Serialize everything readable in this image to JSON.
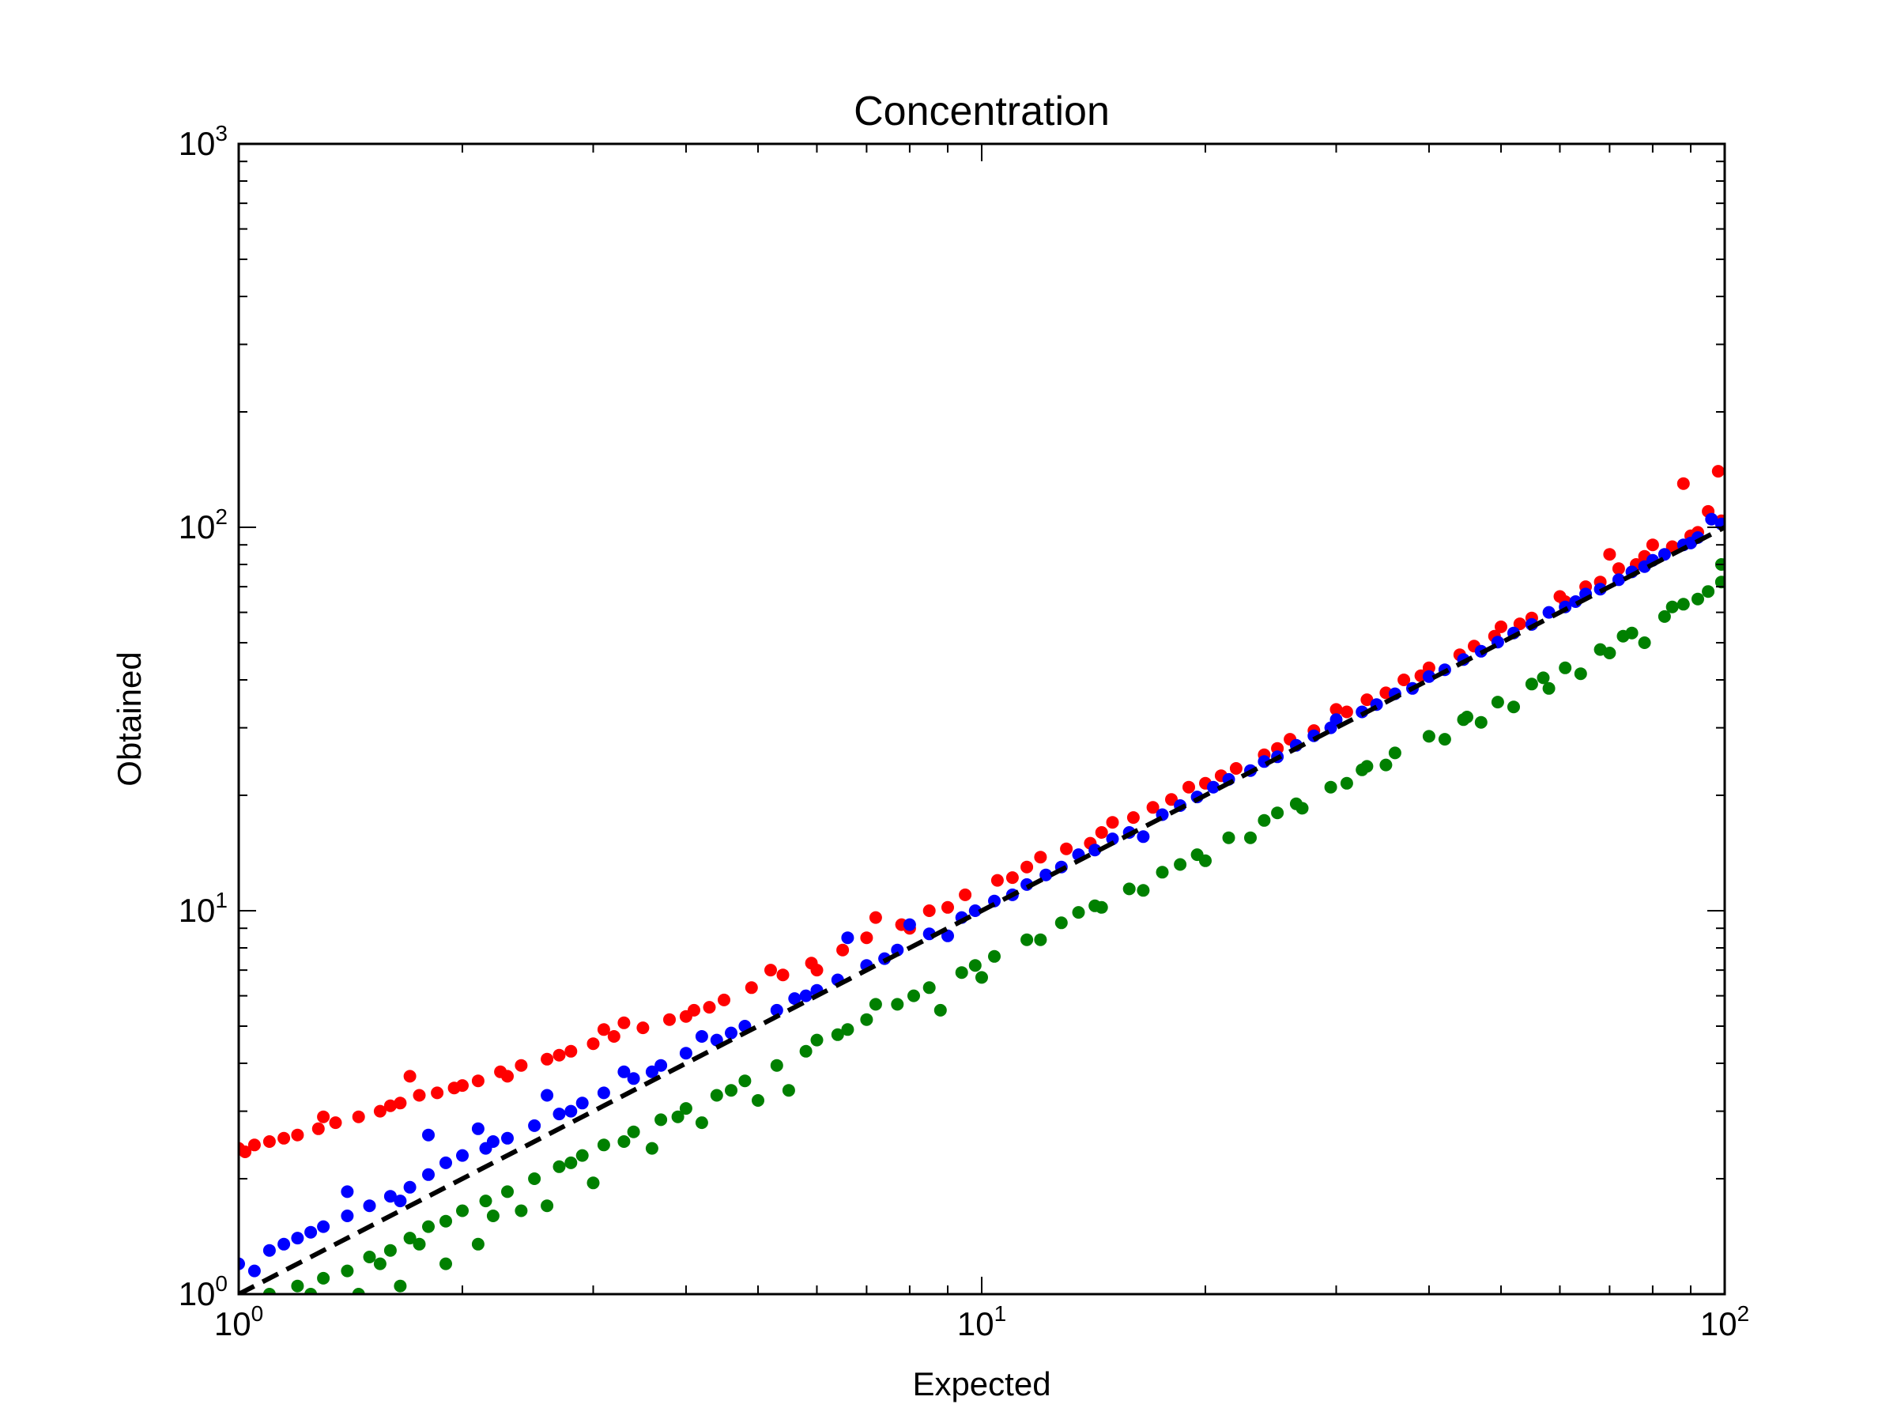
{
  "chart_data": {
    "type": "scatter",
    "title": "Concentration",
    "xlabel": "Expected",
    "ylabel": "Obtained",
    "x_scale": "log",
    "y_scale": "log",
    "xlim": [
      1,
      100
    ],
    "ylim": [
      1,
      1000
    ],
    "grid": false,
    "legend": "none",
    "x_ticks": [
      {
        "value": 1,
        "base": "10",
        "exp": "0"
      },
      {
        "value": 10,
        "base": "10",
        "exp": "1"
      },
      {
        "value": 100,
        "base": "10",
        "exp": "2"
      }
    ],
    "y_ticks": [
      {
        "value": 1,
        "base": "10",
        "exp": "0"
      },
      {
        "value": 10,
        "base": "10",
        "exp": "1"
      },
      {
        "value": 100,
        "base": "10",
        "exp": "2"
      },
      {
        "value": 1000,
        "base": "10",
        "exp": "3"
      }
    ],
    "reference_line": {
      "style": "dashed",
      "color": "#000000",
      "x": [
        1,
        100
      ],
      "y": [
        1,
        100
      ]
    },
    "series": [
      {
        "color": "#ff0000",
        "points": [
          [
            1.0,
            2.4
          ],
          [
            1.05,
            2.45
          ],
          [
            1.1,
            2.5
          ],
          [
            1.15,
            2.55
          ],
          [
            1.2,
            2.6
          ],
          [
            1.28,
            2.7
          ],
          [
            1.35,
            2.8
          ],
          [
            1.45,
            2.9
          ],
          [
            1.55,
            3.0
          ],
          [
            1.65,
            3.15
          ],
          [
            1.75,
            3.3
          ],
          [
            1.85,
            3.35
          ],
          [
            1.95,
            3.45
          ],
          [
            2.1,
            3.6
          ],
          [
            2.25,
            3.8
          ],
          [
            2.4,
            3.95
          ],
          [
            2.6,
            4.1
          ],
          [
            2.8,
            4.3
          ],
          [
            3.0,
            4.5
          ],
          [
            3.2,
            4.7
          ],
          [
            3.5,
            4.95
          ],
          [
            3.8,
            5.2
          ],
          [
            4.1,
            5.5
          ],
          [
            4.5,
            5.85
          ],
          [
            4.9,
            6.3
          ],
          [
            5.4,
            6.8
          ],
          [
            5.9,
            7.3
          ],
          [
            6.5,
            7.9
          ],
          [
            7.0,
            8.5
          ],
          [
            7.8,
            9.2
          ],
          [
            8.5,
            10.0
          ],
          [
            9.5,
            11.0
          ],
          [
            10.5,
            12.0
          ],
          [
            11.5,
            13.0
          ],
          [
            13.0,
            14.5
          ],
          [
            14.5,
            16.0
          ],
          [
            16.0,
            17.5
          ],
          [
            18.0,
            19.5
          ],
          [
            20.0,
            21.5
          ],
          [
            22.0,
            23.5
          ],
          [
            25.0,
            26.5
          ],
          [
            28.0,
            29.5
          ],
          [
            31.0,
            33.0
          ],
          [
            35.0,
            37.0
          ],
          [
            39.0,
            41.0
          ],
          [
            44.0,
            46.5
          ],
          [
            49.0,
            52.0
          ],
          [
            55.0,
            58.0
          ],
          [
            61.0,
            64.0
          ],
          [
            68.0,
            72.0
          ],
          [
            76.0,
            80.0
          ],
          [
            85.0,
            89.0
          ],
          [
            92.0,
            97.0
          ],
          [
            99.0,
            104.0
          ],
          [
            1.02,
            2.35
          ],
          [
            1.3,
            2.9
          ],
          [
            1.7,
            3.7
          ],
          [
            2.3,
            3.7
          ],
          [
            3.1,
            4.9
          ],
          [
            4.0,
            5.3
          ],
          [
            5.2,
            7.0
          ],
          [
            7.2,
            9.6
          ],
          [
            9.0,
            10.2
          ],
          [
            12.0,
            13.8
          ],
          [
            15.0,
            17.0
          ],
          [
            19.0,
            21.0
          ],
          [
            24.0,
            25.5
          ],
          [
            30.0,
            33.5
          ],
          [
            40.0,
            43.0
          ],
          [
            50.0,
            55.0
          ],
          [
            60.0,
            66.0
          ],
          [
            72.0,
            78.0
          ],
          [
            80.0,
            90.0
          ],
          [
            95.0,
            110.0
          ],
          [
            70.0,
            85.0
          ],
          [
            88.0,
            130.0
          ],
          [
            98.0,
            140.0
          ],
          [
            1.6,
            3.1
          ],
          [
            2.0,
            3.5
          ],
          [
            2.7,
            4.2
          ],
          [
            3.3,
            5.1
          ],
          [
            4.3,
            5.6
          ],
          [
            6.0,
            7.0
          ],
          [
            8.0,
            9.0
          ],
          [
            11.0,
            12.2
          ],
          [
            14.0,
            15.0
          ],
          [
            17.0,
            18.6
          ],
          [
            21.0,
            22.5
          ],
          [
            26.0,
            28.0
          ],
          [
            33.0,
            35.5
          ],
          [
            37.0,
            40.0
          ],
          [
            46.0,
            49.0
          ],
          [
            53.0,
            56.0
          ],
          [
            65.0,
            70.0
          ],
          [
            78.0,
            84.0
          ],
          [
            90.0,
            95.0
          ]
        ]
      },
      {
        "color": "#0000ff",
        "points": [
          [
            1.0,
            1.2
          ],
          [
            1.05,
            1.15
          ],
          [
            1.1,
            1.3
          ],
          [
            1.15,
            1.35
          ],
          [
            1.2,
            1.4
          ],
          [
            1.3,
            1.5
          ],
          [
            1.4,
            1.6
          ],
          [
            1.5,
            1.7
          ],
          [
            1.6,
            1.8
          ],
          [
            1.7,
            1.9
          ],
          [
            1.8,
            2.05
          ],
          [
            1.9,
            2.2
          ],
          [
            2.0,
            2.3
          ],
          [
            2.15,
            2.4
          ],
          [
            2.3,
            2.55
          ],
          [
            2.5,
            2.75
          ],
          [
            2.7,
            2.95
          ],
          [
            2.9,
            3.15
          ],
          [
            3.1,
            3.35
          ],
          [
            3.4,
            3.65
          ],
          [
            3.7,
            3.95
          ],
          [
            4.0,
            4.25
          ],
          [
            4.4,
            4.6
          ],
          [
            4.8,
            5.0
          ],
          [
            5.3,
            5.5
          ],
          [
            5.8,
            6.0
          ],
          [
            6.4,
            6.6
          ],
          [
            7.0,
            7.2
          ],
          [
            7.7,
            7.9
          ],
          [
            8.5,
            8.7
          ],
          [
            9.4,
            9.6
          ],
          [
            10.4,
            10.6
          ],
          [
            11.5,
            11.7
          ],
          [
            12.8,
            13.0
          ],
          [
            14.2,
            14.4
          ],
          [
            15.8,
            16.0
          ],
          [
            17.5,
            17.8
          ],
          [
            19.5,
            19.8
          ],
          [
            21.5,
            22.0
          ],
          [
            24.0,
            24.5
          ],
          [
            26.5,
            27.0
          ],
          [
            29.5,
            30.0
          ],
          [
            32.5,
            33.0
          ],
          [
            36.0,
            36.8
          ],
          [
            40.0,
            40.8
          ],
          [
            44.5,
            45.2
          ],
          [
            49.5,
            50.2
          ],
          [
            55.0,
            55.8
          ],
          [
            61.0,
            62.0
          ],
          [
            68.0,
            69.0
          ],
          [
            75.0,
            76.5
          ],
          [
            83.0,
            85.0
          ],
          [
            92.0,
            94.0
          ],
          [
            99.0,
            102.0
          ],
          [
            1.4,
            1.85
          ],
          [
            1.8,
            2.6
          ],
          [
            2.1,
            2.7
          ],
          [
            2.6,
            3.3
          ],
          [
            3.3,
            3.8
          ],
          [
            4.2,
            4.7
          ],
          [
            5.6,
            5.9
          ],
          [
            6.6,
            8.5
          ],
          [
            8.0,
            9.2
          ],
          [
            9.0,
            8.6
          ],
          [
            11.0,
            11.0
          ],
          [
            13.5,
            14.0
          ],
          [
            16.5,
            15.6
          ],
          [
            20.5,
            21.0
          ],
          [
            25.0,
            25.2
          ],
          [
            30.0,
            31.5
          ],
          [
            38.0,
            38.0
          ],
          [
            47.0,
            47.5
          ],
          [
            58.0,
            60.0
          ],
          [
            65.0,
            67.0
          ],
          [
            72.0,
            73.0
          ],
          [
            80.0,
            82.0
          ],
          [
            88.0,
            90.0
          ],
          [
            96.0,
            105.0
          ],
          [
            1.25,
            1.45
          ],
          [
            1.65,
            1.75
          ],
          [
            2.2,
            2.5
          ],
          [
            2.8,
            3.0
          ],
          [
            3.6,
            3.8
          ],
          [
            4.6,
            4.8
          ],
          [
            6.0,
            6.2
          ],
          [
            7.4,
            7.5
          ],
          [
            9.8,
            10.0
          ],
          [
            12.2,
            12.4
          ],
          [
            15.0,
            15.4
          ],
          [
            18.5,
            18.8
          ],
          [
            23.0,
            23.2
          ],
          [
            28.0,
            28.6
          ],
          [
            34.0,
            34.5
          ],
          [
            42.0,
            42.5
          ],
          [
            52.0,
            53.0
          ],
          [
            63.0,
            64.0
          ],
          [
            78.0,
            79.0
          ],
          [
            90.0,
            91.0
          ]
        ]
      },
      {
        "color": "#008000",
        "points": [
          [
            1.1,
            1.0
          ],
          [
            1.2,
            1.05
          ],
          [
            1.3,
            1.1
          ],
          [
            1.4,
            1.15
          ],
          [
            1.5,
            1.25
          ],
          [
            1.6,
            1.3
          ],
          [
            1.7,
            1.4
          ],
          [
            1.8,
            1.5
          ],
          [
            1.9,
            1.55
          ],
          [
            2.0,
            1.65
          ],
          [
            2.15,
            1.75
          ],
          [
            2.3,
            1.85
          ],
          [
            2.5,
            2.0
          ],
          [
            2.7,
            2.15
          ],
          [
            2.9,
            2.3
          ],
          [
            3.1,
            2.45
          ],
          [
            3.4,
            2.65
          ],
          [
            3.7,
            2.85
          ],
          [
            4.0,
            3.05
          ],
          [
            4.4,
            3.3
          ],
          [
            4.8,
            3.6
          ],
          [
            5.3,
            3.95
          ],
          [
            5.8,
            4.3
          ],
          [
            6.4,
            4.75
          ],
          [
            7.0,
            5.2
          ],
          [
            7.7,
            5.7
          ],
          [
            8.5,
            6.3
          ],
          [
            9.4,
            6.9
          ],
          [
            10.4,
            7.6
          ],
          [
            11.5,
            8.4
          ],
          [
            12.8,
            9.3
          ],
          [
            14.2,
            10.3
          ],
          [
            15.8,
            11.4
          ],
          [
            17.5,
            12.6
          ],
          [
            19.5,
            14.0
          ],
          [
            21.5,
            15.5
          ],
          [
            24.0,
            17.2
          ],
          [
            26.5,
            19.0
          ],
          [
            29.5,
            21.0
          ],
          [
            32.5,
            23.3
          ],
          [
            36.0,
            25.8
          ],
          [
            40.0,
            28.5
          ],
          [
            44.5,
            31.5
          ],
          [
            49.5,
            35.0
          ],
          [
            55.0,
            39.0
          ],
          [
            61.0,
            43.0
          ],
          [
            68.0,
            48.0
          ],
          [
            75.0,
            53.0
          ],
          [
            83.0,
            58.5
          ],
          [
            92.0,
            65.0
          ],
          [
            99.0,
            72.0
          ],
          [
            1.45,
            1.0
          ],
          [
            1.65,
            1.05
          ],
          [
            1.9,
            1.2
          ],
          [
            2.1,
            1.35
          ],
          [
            2.4,
            1.65
          ],
          [
            2.6,
            1.7
          ],
          [
            3.0,
            1.95
          ],
          [
            3.6,
            2.4
          ],
          [
            4.2,
            2.8
          ],
          [
            5.0,
            3.2
          ],
          [
            5.5,
            3.4
          ],
          [
            6.0,
            4.6
          ],
          [
            7.2,
            5.7
          ],
          [
            8.8,
            5.5
          ],
          [
            10.0,
            6.7
          ],
          [
            12.0,
            8.4
          ],
          [
            14.5,
            10.2
          ],
          [
            16.5,
            11.3
          ],
          [
            20.0,
            13.5
          ],
          [
            23.0,
            15.5
          ],
          [
            27.0,
            18.5
          ],
          [
            31.0,
            21.5
          ],
          [
            35.0,
            24.0
          ],
          [
            42.0,
            28.0
          ],
          [
            47.0,
            31.0
          ],
          [
            52.0,
            34.0
          ],
          [
            58.0,
            38.0
          ],
          [
            64.0,
            41.5
          ],
          [
            70.0,
            47.0
          ],
          [
            78.0,
            50.0
          ],
          [
            85.0,
            62.0
          ],
          [
            95.0,
            68.0
          ],
          [
            99.0,
            80.0
          ],
          [
            1.25,
            1.0
          ],
          [
            1.55,
            1.2
          ],
          [
            1.75,
            1.35
          ],
          [
            2.2,
            1.6
          ],
          [
            2.8,
            2.2
          ],
          [
            3.3,
            2.5
          ],
          [
            3.9,
            2.9
          ],
          [
            4.6,
            3.4
          ],
          [
            6.6,
            4.9
          ],
          [
            8.1,
            6.0
          ],
          [
            9.8,
            7.2
          ],
          [
            13.5,
            9.9
          ],
          [
            18.5,
            13.2
          ],
          [
            25.0,
            18.0
          ],
          [
            33.0,
            23.8
          ],
          [
            45.0,
            32.0
          ],
          [
            57.0,
            40.5
          ],
          [
            73.0,
            52.0
          ],
          [
            88.0,
            63.0
          ]
        ]
      }
    ]
  }
}
